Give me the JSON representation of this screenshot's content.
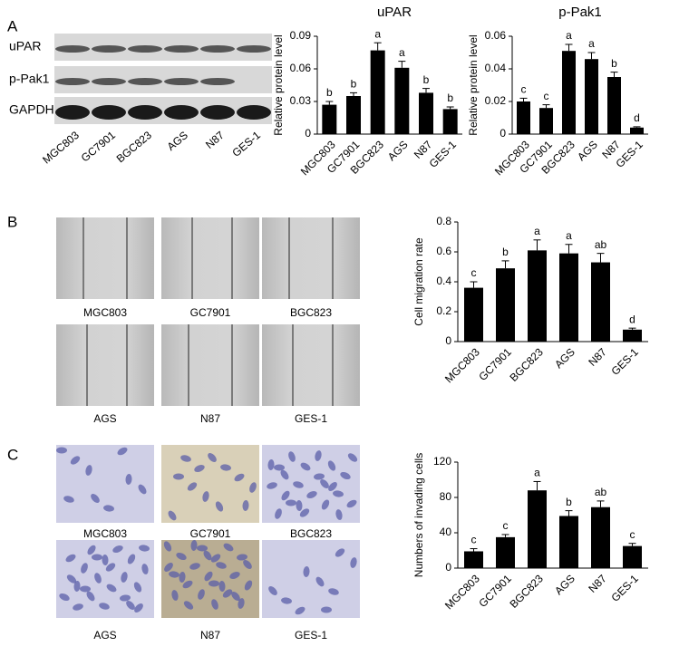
{
  "panels": [
    "A",
    "B",
    "C"
  ],
  "blot": {
    "rows": [
      "uPAR",
      "p-Pak1",
      "GAPDH"
    ],
    "lanes": [
      "MGC803",
      "GC7901",
      "BGC823",
      "AGS",
      "N87",
      "GES-1"
    ]
  },
  "wound_images": [
    "MGC803",
    "GC7901",
    "BGC823",
    "AGS",
    "N87",
    "GES-1"
  ],
  "invasion_images": [
    "MGC803",
    "GC7901",
    "BGC823",
    "AGS",
    "N87",
    "GES-1"
  ],
  "chart_data": [
    {
      "type": "bar",
      "title": "uPAR",
      "y_label": "Relative protein level",
      "color": "#000000",
      "categories": [
        "MGC803",
        "GC7901",
        "BGC823",
        "AGS",
        "N87",
        "GES-1"
      ],
      "values": [
        0.027,
        0.035,
        0.077,
        0.061,
        0.038,
        0.023
      ],
      "errors": [
        0.003,
        0.003,
        0.007,
        0.006,
        0.004,
        0.002
      ],
      "annotations": [
        "b",
        "b",
        "a",
        "a",
        "b",
        "b"
      ],
      "ylim": [
        0,
        0.09
      ],
      "yticks": [
        0,
        0.03,
        0.06,
        0.09
      ]
    },
    {
      "type": "bar",
      "title": "p-Pak1",
      "y_label": "Relative protein level",
      "color": "#000000",
      "categories": [
        "MGC803",
        "GC7901",
        "BGC823",
        "AGS",
        "N87",
        "GES-1"
      ],
      "values": [
        0.02,
        0.016,
        0.051,
        0.046,
        0.035,
        0.004
      ],
      "errors": [
        0.002,
        0.002,
        0.004,
        0.004,
        0.003,
        0.0005
      ],
      "annotations": [
        "c",
        "c",
        "a",
        "a",
        "b",
        "d"
      ],
      "ylim": [
        0,
        0.06
      ],
      "yticks": [
        0,
        0.02,
        0.04,
        0.06
      ]
    },
    {
      "type": "bar",
      "y_label": "Cell migration rate",
      "color": "#000000",
      "categories": [
        "MGC803",
        "GC7901",
        "BGC823",
        "AGS",
        "N87",
        "GES-1"
      ],
      "values": [
        0.36,
        0.49,
        0.61,
        0.59,
        0.53,
        0.08
      ],
      "errors": [
        0.04,
        0.05,
        0.07,
        0.06,
        0.06,
        0.01
      ],
      "annotations": [
        "c",
        "b",
        "a",
        "a",
        "ab",
        "d"
      ],
      "ylim": [
        0,
        0.8
      ],
      "yticks": [
        0,
        0.2,
        0.4,
        0.6,
        0.8
      ]
    },
    {
      "type": "bar",
      "y_label": "Numbers of invading cells",
      "color": "#000000",
      "categories": [
        "MGC803",
        "GC7901",
        "BGC823",
        "AGS",
        "N87",
        "GES-1"
      ],
      "values": [
        19,
        35,
        88,
        59,
        69,
        25
      ],
      "errors": [
        3,
        3,
        10,
        6,
        7,
        3
      ],
      "annotations": [
        "c",
        "c",
        "a",
        "b",
        "ab",
        "c"
      ],
      "ylim": [
        0,
        120
      ],
      "yticks": [
        0,
        40,
        80,
        120
      ]
    }
  ]
}
